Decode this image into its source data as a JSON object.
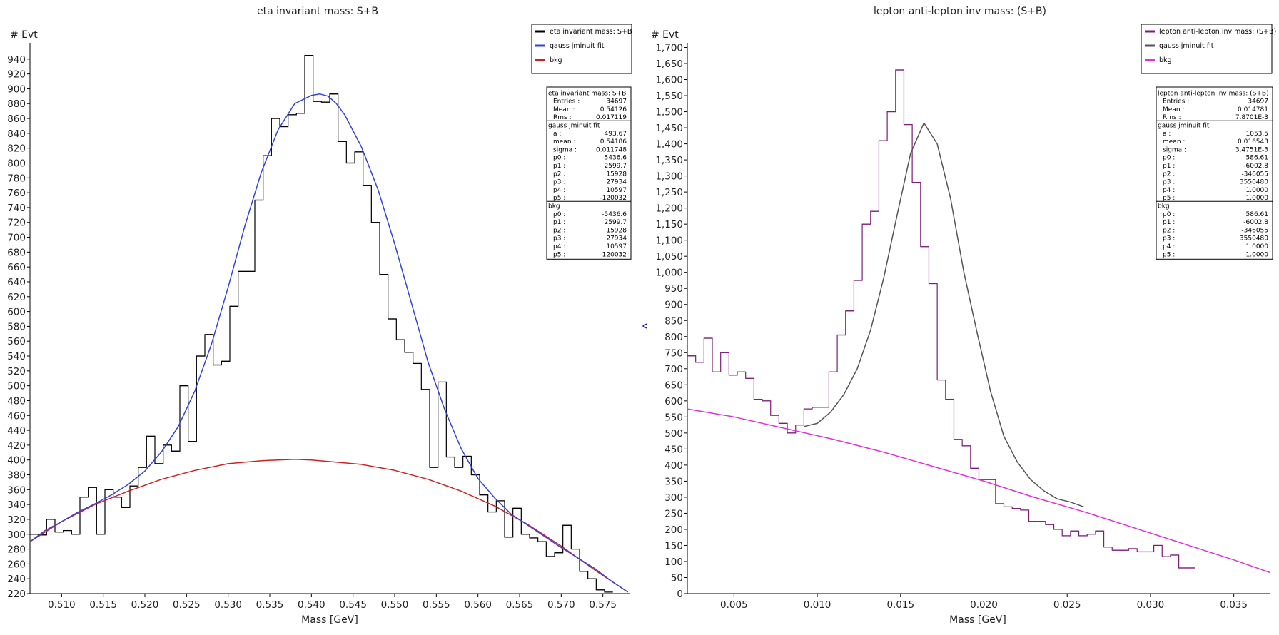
{
  "colors": {
    "eta_hist": "#000000",
    "eta_fit": "#3344dd",
    "eta_bkg": "#cc2222",
    "lep_hist": "#7b1f7b",
    "lep_fit": "#555555",
    "lep_bkg": "#dd33dd"
  },
  "chart_data": [
    {
      "type": "line",
      "title": "eta invariant mass: S+B",
      "xlabel": "Mass   [GeV]",
      "ylabel": "# Evt",
      "xlim": [
        0.5062,
        0.5782
      ],
      "ylim": [
        220,
        960
      ],
      "xticks": [
        0.51,
        0.515,
        0.52,
        0.525,
        0.53,
        0.535,
        0.54,
        0.545,
        0.55,
        0.555,
        0.56,
        0.565,
        0.57,
        0.575
      ],
      "xtick_labels": [
        "0.510",
        "0.515",
        "0.520",
        "0.525",
        "0.530",
        "0.535",
        "0.540",
        "0.545",
        "0.550",
        "0.555",
        "0.560",
        "0.565",
        "0.570",
        "0.575"
      ],
      "yticks": [
        220,
        240,
        260,
        280,
        300,
        320,
        340,
        360,
        380,
        400,
        420,
        440,
        460,
        480,
        500,
        520,
        540,
        560,
        580,
        600,
        620,
        640,
        660,
        680,
        700,
        720,
        740,
        760,
        780,
        800,
        820,
        840,
        860,
        880,
        900,
        920,
        940
      ],
      "ytick_labels": [
        "220",
        "240",
        "260",
        "280",
        "300",
        "320",
        "340",
        "360",
        "380",
        "400",
        "420",
        "440",
        "460",
        "480",
        "500",
        "520",
        "540",
        "560",
        "580",
        "600",
        "620",
        "640",
        "660",
        "680",
        "700",
        "720",
        "740",
        "760",
        "780",
        "800",
        "820",
        "840",
        "860",
        "880",
        "900",
        "920",
        "940"
      ],
      "histogram": {
        "name": "eta invariant mass: S+B",
        "x_min": 0.5062,
        "bin_width": 0.001,
        "values": [
          300,
          299,
          320,
          303,
          305,
          300,
          350,
          363,
          300,
          360,
          350,
          336,
          365,
          390,
          432,
          395,
          420,
          412,
          500,
          425,
          540,
          569,
          528,
          533,
          607,
          654,
          654,
          750,
          810,
          860,
          849,
          865,
          867,
          945,
          883,
          882,
          893,
          829,
          800,
          815,
          770,
          720,
          650,
          590,
          562,
          545,
          530,
          495,
          390,
          505,
          404,
          390,
          405,
          380,
          353,
          330,
          345,
          296,
          335,
          300,
          295,
          290,
          270,
          275,
          312,
          280,
          250,
          240,
          225,
          222
        ]
      },
      "fit_curve": {
        "name": "gauss jminuit fit",
        "x": [
          0.5062,
          0.508,
          0.51,
          0.512,
          0.514,
          0.516,
          0.518,
          0.52,
          0.522,
          0.524,
          0.526,
          0.528,
          0.53,
          0.532,
          0.534,
          0.536,
          0.538,
          0.54,
          0.541,
          0.542,
          0.543,
          0.544,
          0.546,
          0.548,
          0.55,
          0.552,
          0.554,
          0.556,
          0.558,
          0.56,
          0.562,
          0.564,
          0.566,
          0.568,
          0.57,
          0.572,
          0.574,
          0.576,
          0.578
        ],
        "y": [
          290,
          305,
          317,
          330,
          341,
          353,
          367,
          385,
          411,
          445,
          493,
          556,
          633,
          715,
          788,
          845,
          880,
          891,
          893,
          890,
          880,
          865,
          822,
          764,
          691,
          612,
          532,
          468,
          415,
          375,
          349,
          327,
          312,
          297,
          282,
          268,
          254,
          237,
          222
        ]
      },
      "bkg_curve": {
        "name": "bkg",
        "x": [
          0.5062,
          0.51,
          0.514,
          0.518,
          0.522,
          0.526,
          0.53,
          0.534,
          0.538,
          0.54,
          0.542,
          0.546,
          0.55,
          0.554,
          0.558,
          0.562,
          0.566,
          0.57,
          0.574,
          0.578
        ],
        "y": [
          290,
          317,
          340,
          358,
          374,
          386,
          395,
          399,
          401,
          400,
          398,
          394,
          386,
          374,
          358,
          338,
          313,
          284,
          252,
          222
        ]
      },
      "legend": {
        "placement": "top-right",
        "entries": [
          "eta invariant mass: S+B",
          "gauss jminuit fit",
          "bkg"
        ]
      },
      "stats": [
        {
          "title": "eta invariant mass: S+B",
          "rows": [
            [
              "Entries :",
              "34697"
            ],
            [
              "Mean :",
              "0.54126"
            ],
            [
              "Rms :",
              "0.017119"
            ]
          ]
        },
        {
          "title": "gauss jminuit fit",
          "rows": [
            [
              "a :",
              "493.67"
            ],
            [
              "mean :",
              "0.54186"
            ],
            [
              "sigma :",
              "0.011748"
            ],
            [
              "p0 :",
              "-5436.6"
            ],
            [
              "p1 :",
              "2599.7"
            ],
            [
              "p2 :",
              "15928"
            ],
            [
              "p3 :",
              "27934"
            ],
            [
              "p4 :",
              "10597"
            ],
            [
              "p5 :",
              "-120032"
            ]
          ]
        },
        {
          "title": "bkg",
          "rows": [
            [
              "p0 :",
              "-5436.6"
            ],
            [
              "p1 :",
              "2599.7"
            ],
            [
              "p2 :",
              "15928"
            ],
            [
              "p3 :",
              "27934"
            ],
            [
              "p4 :",
              "10597"
            ],
            [
              "p5 :",
              "-120032"
            ]
          ]
        }
      ]
    },
    {
      "type": "line",
      "title": "lepton anti-lepton inv mass: (S+B)",
      "xlabel": "Mass   [GeV]",
      "ylabel": "# Evt",
      "xlim": [
        0.0022,
        0.0372
      ],
      "ylim": [
        0,
        1710
      ],
      "xticks": [
        0.005,
        0.01,
        0.015,
        0.02,
        0.025,
        0.03,
        0.035
      ],
      "xtick_labels": [
        "0.005",
        "0.010",
        "0.015",
        "0.020",
        "0.025",
        "0.030",
        "0.035"
      ],
      "yticks": [
        0,
        50,
        100,
        150,
        200,
        250,
        300,
        350,
        400,
        450,
        500,
        550,
        600,
        650,
        700,
        750,
        800,
        850,
        900,
        950,
        1000,
        1050,
        1100,
        1150,
        1200,
        1250,
        1300,
        1350,
        1400,
        1450,
        1500,
        1550,
        1600,
        1650,
        1700
      ],
      "ytick_labels": [
        "0",
        "50",
        "100",
        "150",
        "200",
        "250",
        "300",
        "350",
        "400",
        "450",
        "500",
        "550",
        "600",
        "650",
        "700",
        "750",
        "800",
        "850",
        "900",
        "950",
        "1,000",
        "1,050",
        "1,100",
        "1,150",
        "1,200",
        "1,250",
        "1,300",
        "1,350",
        "1,400",
        "1,450",
        "1,500",
        "1,550",
        "1,600",
        "1,650",
        "1,700"
      ],
      "histogram": {
        "name": "lepton anti-lepton inv mass: (S+B)",
        "x_min": 0.0022,
        "bin_width": 0.0005,
        "values": [
          740,
          720,
          795,
          690,
          750,
          680,
          690,
          670,
          605,
          600,
          555,
          530,
          500,
          525,
          575,
          580,
          580,
          690,
          805,
          880,
          975,
          1150,
          1190,
          1410,
          1500,
          1630,
          1460,
          1280,
          1080,
          965,
          665,
          605,
          480,
          460,
          390,
          355,
          355,
          280,
          270,
          265,
          260,
          225,
          225,
          215,
          200,
          180,
          195,
          180,
          185,
          195,
          145,
          135,
          135,
          140,
          130,
          130,
          150,
          115,
          120,
          80,
          80
        ]
      },
      "fit_curve": {
        "name": "gauss jminuit fit",
        "x": [
          0.0092,
          0.01,
          0.0108,
          0.0116,
          0.0124,
          0.0132,
          0.014,
          0.0148,
          0.0156,
          0.0164,
          0.0172,
          0.018,
          0.0188,
          0.0196,
          0.0204,
          0.0212,
          0.022,
          0.0228,
          0.0236,
          0.0244,
          0.0252,
          0.026
        ],
        "y": [
          520,
          530,
          565,
          620,
          700,
          820,
          985,
          1180,
          1370,
          1465,
          1400,
          1230,
          1000,
          810,
          630,
          490,
          410,
          355,
          320,
          295,
          285,
          270
        ]
      },
      "bkg_curve": {
        "name": "bkg",
        "x": [
          0.0022,
          0.005,
          0.008,
          0.011,
          0.014,
          0.017,
          0.02,
          0.023,
          0.026,
          0.029,
          0.032,
          0.035,
          0.0372
        ],
        "y": [
          575,
          550,
          515,
          480,
          440,
          395,
          350,
          300,
          255,
          205,
          155,
          105,
          65
        ]
      },
      "legend": {
        "placement": "top-right",
        "entries": [
          "lepton anti-lepton inv mass: (S+B)",
          "gauss jminuit fit",
          "bkg"
        ]
      },
      "stats": [
        {
          "title": "lepton anti-lepton inv mass: (S+B)",
          "rows": [
            [
              "Entries :",
              "34697"
            ],
            [
              "Mean :",
              "0.014781"
            ],
            [
              "Rms :",
              "7.8701E-3"
            ]
          ]
        },
        {
          "title": "gauss jminuit fit",
          "rows": [
            [
              "a :",
              "1053.5"
            ],
            [
              "mean :",
              "0.016543"
            ],
            [
              "sigma :",
              "3.4751E-3"
            ],
            [
              "p0 :",
              "586.61"
            ],
            [
              "p1 :",
              "-6002.8"
            ],
            [
              "p2 :",
              "-346055"
            ],
            [
              "p3 :",
              "3550480"
            ],
            [
              "p4 :",
              "1.0000"
            ],
            [
              "p5 :",
              "1.0000"
            ]
          ]
        },
        {
          "title": "bkg",
          "rows": [
            [
              "p0 :",
              "586.61"
            ],
            [
              "p1 :",
              "-6002.8"
            ],
            [
              "p2 :",
              "-346055"
            ],
            [
              "p3 :",
              "3550480"
            ],
            [
              "p4 :",
              "1.0000"
            ],
            [
              "p5 :",
              "1.0000"
            ]
          ]
        }
      ]
    }
  ]
}
